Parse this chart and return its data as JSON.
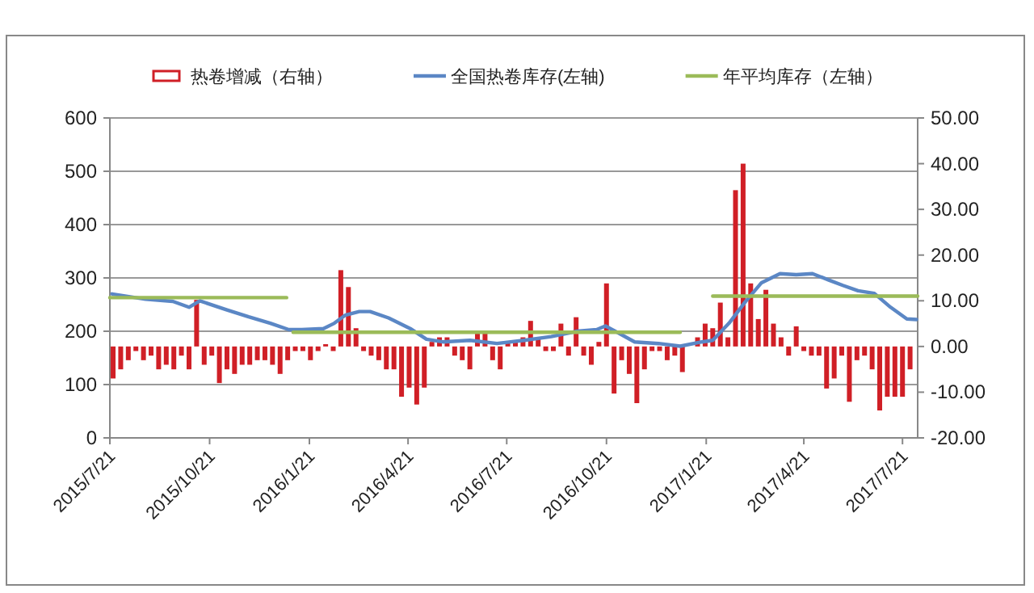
{
  "chart_data": {
    "type": "bar",
    "x": [
      "2015-07-24",
      "2015-07-31",
      "2015-08-07",
      "2015-08-14",
      "2015-08-21",
      "2015-08-28",
      "2015-09-04",
      "2015-09-11",
      "2015-09-18",
      "2015-09-25",
      "2015-10-02",
      "2015-10-09",
      "2015-10-16",
      "2015-10-23",
      "2015-10-30",
      "2015-11-06",
      "2015-11-13",
      "2015-11-20",
      "2015-11-27",
      "2015-12-04",
      "2015-12-11",
      "2015-12-18",
      "2015-12-25",
      "2016-01-01",
      "2016-01-08",
      "2016-01-15",
      "2016-01-22",
      "2016-01-29",
      "2016-02-05",
      "2016-02-12",
      "2016-02-19",
      "2016-02-26",
      "2016-03-04",
      "2016-03-11",
      "2016-03-18",
      "2016-03-25",
      "2016-04-01",
      "2016-04-08",
      "2016-04-15",
      "2016-04-22",
      "2016-04-29",
      "2016-05-06",
      "2016-05-13",
      "2016-05-20",
      "2016-05-27",
      "2016-06-03",
      "2016-06-10",
      "2016-06-17",
      "2016-06-24",
      "2016-07-01",
      "2016-07-08",
      "2016-07-15",
      "2016-07-22",
      "2016-07-29",
      "2016-08-05",
      "2016-08-12",
      "2016-08-19",
      "2016-08-26",
      "2016-09-02",
      "2016-09-09",
      "2016-09-16",
      "2016-09-23",
      "2016-09-30",
      "2016-10-07",
      "2016-10-14",
      "2016-10-21",
      "2016-10-28",
      "2016-11-04",
      "2016-11-11",
      "2016-11-18",
      "2016-11-25",
      "2016-12-02",
      "2016-12-09",
      "2016-12-16",
      "2016-12-23",
      "2016-12-30",
      "2017-01-06",
      "2017-01-13",
      "2017-01-20",
      "2017-01-27",
      "2017-02-03",
      "2017-02-10",
      "2017-02-17",
      "2017-02-24",
      "2017-03-03",
      "2017-03-10",
      "2017-03-17",
      "2017-03-24",
      "2017-03-31",
      "2017-04-07",
      "2017-04-14",
      "2017-04-21",
      "2017-04-28",
      "2017-05-05",
      "2017-05-12",
      "2017-05-19",
      "2017-05-26",
      "2017-06-02",
      "2017-06-09",
      "2017-06-16",
      "2017-06-23",
      "2017-06-30",
      "2017-07-07",
      "2017-07-14",
      "2017-07-21",
      "2017-07-28"
    ],
    "series": [
      {
        "name": "热卷增减（右轴）",
        "axis": "y2",
        "color": "#d01f26",
        "values": [
          -7,
          -5,
          -3,
          -1,
          -3,
          -2,
          -5,
          -4,
          -5,
          -2,
          -5,
          10.2,
          -4,
          -2,
          -8,
          -5,
          -6,
          -4,
          -4,
          -3,
          -3,
          -4,
          -6,
          -3,
          -1,
          -1,
          -3,
          -1,
          0.5,
          -1,
          16.7,
          13,
          4,
          -1,
          -2,
          -3,
          -5,
          -5,
          -11,
          -9,
          -12.7,
          -9,
          1,
          2,
          2,
          -2,
          -3,
          -5,
          3,
          3,
          -3,
          -5,
          1,
          1,
          2,
          5.6,
          2,
          -1,
          -1,
          5,
          -2,
          6.4,
          -2,
          -4,
          1,
          13.8,
          -10.3,
          -3,
          -6,
          -12.4,
          -5,
          -1,
          -1,
          -3,
          -2,
          -5.6,
          null,
          2,
          5,
          4,
          9.6,
          2,
          34.2,
          40,
          13.8,
          6,
          12.4,
          5,
          2,
          -2,
          4.4,
          -1,
          -2,
          -2,
          -9.2,
          -7,
          -2,
          -12.1,
          -3,
          -2,
          -5,
          -14,
          -11,
          -11,
          -11,
          -5
        ]
      },
      {
        "name": "全国热卷库存(左轴)",
        "type": "line",
        "color": "#5b87c5",
        "x": [
          "2015-07-23",
          "2015-08-23",
          "2015-09-17",
          "2015-10-02",
          "2015-10-12",
          "2015-11-06",
          "2015-11-26",
          "2015-12-16",
          "2016-01-02",
          "2016-01-14",
          "2016-02-03",
          "2016-02-13",
          "2016-02-23",
          "2016-03-07",
          "2016-03-17",
          "2016-04-03",
          "2016-04-23",
          "2016-05-08",
          "2016-05-23",
          "2016-06-17",
          "2016-07-12",
          "2016-08-06",
          "2016-08-31",
          "2016-09-24",
          "2016-10-12",
          "2016-10-20",
          "2016-10-29",
          "2016-11-16",
          "2016-12-08",
          "2016-12-28",
          "2017-01-17",
          "2017-01-27",
          "2017-02-11",
          "2017-02-26",
          "2017-03-13",
          "2017-03-30",
          "2017-04-14",
          "2017-04-29",
          "2017-05-14",
          "2017-05-27",
          "2017-06-10",
          "2017-06-25",
          "2017-07-10",
          "2017-07-25",
          "2017-08-03"
        ],
        "values": [
          270,
          260,
          256,
          245,
          257,
          240,
          227,
          215,
          203,
          203,
          205,
          215,
          230,
          237,
          237,
          225,
          205,
          185,
          180,
          183,
          177,
          183,
          190,
          200,
          203,
          210,
          200,
          180,
          177,
          172,
          180,
          183,
          215,
          255,
          291,
          308,
          306,
          308,
          296,
          286,
          276,
          271,
          245,
          223,
          222
        ]
      },
      {
        "name": "年平均库存（左轴）",
        "type": "line",
        "color": "#9bbb59",
        "x": [
          "2015-07-21",
          "2015-12-31",
          "2016-01-03",
          "2016-01-06",
          "2016-12-28",
          "2017-01-12",
          "2017-01-27",
          "2017-08-04"
        ],
        "values": [
          263,
          263,
          null,
          198,
          198,
          null,
          266,
          266
        ]
      }
    ],
    "xlim": [
      "2015-07-21",
      "2017-08-04"
    ],
    "xticks": [
      {
        "value": "2015-07-21",
        "label": "2015/7/21"
      },
      {
        "value": "2015-10-21",
        "label": "2015/10/21"
      },
      {
        "value": "2016-01-21",
        "label": "2016/1/21"
      },
      {
        "value": "2016-04-21",
        "label": "2016/4/21"
      },
      {
        "value": "2016-07-21",
        "label": "2016/7/21"
      },
      {
        "value": "2016-10-21",
        "label": "2016/10/21"
      },
      {
        "value": "2017-01-21",
        "label": "2017/1/21"
      },
      {
        "value": "2017-04-21",
        "label": "2017/4/21"
      },
      {
        "value": "2017-07-21",
        "label": "2017/7/21"
      }
    ],
    "ylim": [
      0,
      600
    ],
    "yticks": [
      0,
      100,
      200,
      300,
      400,
      500,
      600
    ],
    "y2lim": [
      -20,
      50
    ],
    "y2ticks": [
      {
        "value": -20,
        "label": "-20.00"
      },
      {
        "value": -10,
        "label": "-10.00"
      },
      {
        "value": 0,
        "label": "0.00"
      },
      {
        "value": 10,
        "label": "10.00"
      },
      {
        "value": 20,
        "label": "20.00"
      },
      {
        "value": 30,
        "label": "30.00"
      },
      {
        "value": 40,
        "label": "40.00"
      },
      {
        "value": 50,
        "label": "50.00"
      }
    ],
    "grid": "y",
    "legend": "top"
  }
}
